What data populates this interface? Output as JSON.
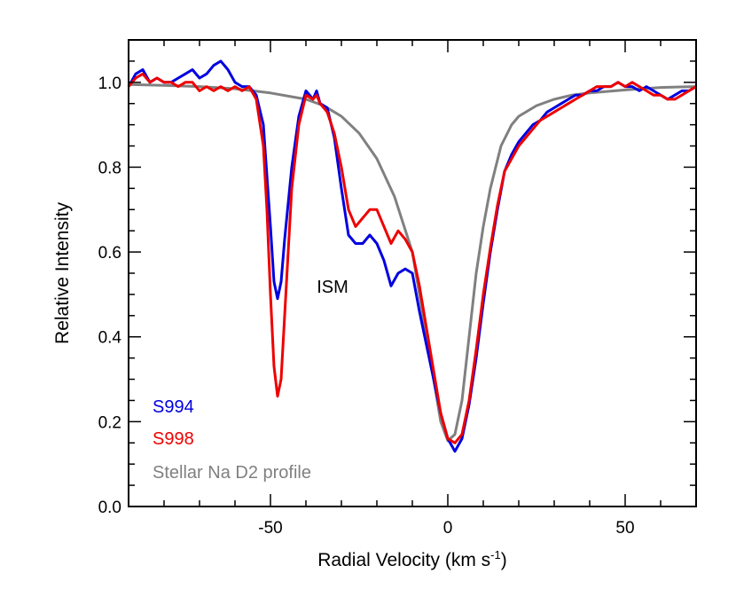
{
  "chart_data": {
    "type": "line",
    "xlabel_main": "Radial Velocity (km s",
    "xlabel_sup": "-1",
    "xlabel_close": ")",
    "ylabel": "Relative Intensity",
    "xlim": [
      -90,
      70
    ],
    "ylim": [
      0.0,
      1.1
    ],
    "x_ticks": [
      -50,
      0,
      50
    ],
    "x_tick_labels": [
      "-50",
      "0",
      "50"
    ],
    "y_ticks": [
      0.0,
      0.2,
      0.4,
      0.6,
      0.8,
      1.0
    ],
    "y_tick_labels": [
      "0.0",
      "0.2",
      "0.4",
      "0.6",
      "0.8",
      "1.0"
    ],
    "grid": false,
    "legend_position": "bottom-left",
    "annotation": {
      "text": "ISM",
      "x": -33,
      "y": 0.5
    },
    "series": [
      {
        "name": "Stellar Na D2 profile",
        "color": "#808080",
        "x": [
          -90,
          -80,
          -70,
          -60,
          -50,
          -40,
          -35,
          -30,
          -25,
          -20,
          -15,
          -10,
          -8,
          -6,
          -4,
          -2,
          0,
          2,
          4,
          6,
          8,
          10,
          12,
          15,
          18,
          20,
          25,
          30,
          35,
          40,
          50,
          60,
          70
        ],
        "y": [
          0.995,
          0.993,
          0.99,
          0.985,
          0.975,
          0.96,
          0.945,
          0.92,
          0.88,
          0.82,
          0.73,
          0.6,
          0.5,
          0.4,
          0.3,
          0.2,
          0.155,
          0.17,
          0.25,
          0.4,
          0.55,
          0.66,
          0.75,
          0.85,
          0.9,
          0.92,
          0.945,
          0.96,
          0.97,
          0.975,
          0.982,
          0.988,
          0.99
        ]
      },
      {
        "name": "S994",
        "color": "#0000e0",
        "x": [
          -90,
          -88,
          -86,
          -84,
          -82,
          -80,
          -78,
          -76,
          -74,
          -72,
          -70,
          -68,
          -66,
          -64,
          -62,
          -60,
          -58,
          -56,
          -54,
          -52,
          -50,
          -49,
          -48,
          -47,
          -46,
          -44,
          -42,
          -40,
          -38,
          -37,
          -36,
          -34,
          -32,
          -30,
          -28,
          -26,
          -24,
          -22,
          -20,
          -18,
          -16,
          -14,
          -12,
          -10,
          -8,
          -6,
          -4,
          -2,
          0,
          2,
          4,
          6,
          8,
          10,
          12,
          14,
          16,
          18,
          20,
          22,
          24,
          26,
          28,
          30,
          32,
          34,
          36,
          38,
          40,
          42,
          44,
          46,
          48,
          50,
          52,
          54,
          56,
          58,
          60,
          62,
          64,
          66,
          68,
          70
        ],
        "y": [
          0.99,
          1.02,
          1.03,
          1.0,
          1.01,
          1.0,
          1.0,
          1.01,
          1.02,
          1.03,
          1.01,
          1.02,
          1.04,
          1.05,
          1.03,
          1.0,
          0.99,
          0.99,
          0.97,
          0.9,
          0.66,
          0.53,
          0.49,
          0.53,
          0.63,
          0.8,
          0.92,
          0.98,
          0.96,
          0.98,
          0.95,
          0.94,
          0.87,
          0.75,
          0.64,
          0.62,
          0.62,
          0.64,
          0.62,
          0.58,
          0.52,
          0.55,
          0.56,
          0.55,
          0.46,
          0.38,
          0.3,
          0.22,
          0.16,
          0.13,
          0.16,
          0.24,
          0.35,
          0.48,
          0.6,
          0.7,
          0.79,
          0.83,
          0.86,
          0.88,
          0.9,
          0.91,
          0.93,
          0.94,
          0.95,
          0.96,
          0.97,
          0.97,
          0.98,
          0.98,
          0.99,
          0.99,
          1.0,
          0.99,
          0.99,
          0.98,
          0.99,
          0.98,
          0.97,
          0.96,
          0.97,
          0.98,
          0.98,
          0.99
        ]
      },
      {
        "name": "S998",
        "color": "#ee0000",
        "x": [
          -90,
          -88,
          -86,
          -84,
          -82,
          -80,
          -78,
          -76,
          -74,
          -72,
          -70,
          -68,
          -66,
          -64,
          -62,
          -60,
          -58,
          -56,
          -54,
          -52,
          -51,
          -50,
          -49,
          -48,
          -47,
          -46,
          -45,
          -44,
          -42,
          -40,
          -38,
          -37,
          -36,
          -34,
          -32,
          -30,
          -28,
          -26,
          -24,
          -22,
          -20,
          -18,
          -16,
          -14,
          -12,
          -10,
          -8,
          -6,
          -4,
          -2,
          0,
          2,
          4,
          6,
          8,
          10,
          12,
          14,
          16,
          18,
          20,
          22,
          24,
          26,
          28,
          30,
          32,
          34,
          36,
          38,
          40,
          42,
          44,
          46,
          48,
          50,
          52,
          54,
          56,
          58,
          60,
          62,
          64,
          66,
          68,
          70
        ],
        "y": [
          0.99,
          1.01,
          1.02,
          1.0,
          1.01,
          1.0,
          1.0,
          0.99,
          1.0,
          1.0,
          0.98,
          0.99,
          0.98,
          0.99,
          0.98,
          0.99,
          0.98,
          0.99,
          0.96,
          0.85,
          0.7,
          0.5,
          0.33,
          0.26,
          0.3,
          0.45,
          0.6,
          0.75,
          0.9,
          0.97,
          0.96,
          0.97,
          0.95,
          0.93,
          0.88,
          0.8,
          0.7,
          0.66,
          0.68,
          0.7,
          0.7,
          0.66,
          0.62,
          0.65,
          0.63,
          0.6,
          0.52,
          0.42,
          0.32,
          0.22,
          0.16,
          0.15,
          0.17,
          0.25,
          0.37,
          0.5,
          0.61,
          0.71,
          0.79,
          0.82,
          0.85,
          0.87,
          0.89,
          0.91,
          0.92,
          0.93,
          0.94,
          0.95,
          0.96,
          0.97,
          0.98,
          0.99,
          0.99,
          0.99,
          1.0,
          0.99,
          1.0,
          0.99,
          0.98,
          0.97,
          0.97,
          0.96,
          0.96,
          0.97,
          0.98,
          0.99
        ]
      }
    ]
  }
}
